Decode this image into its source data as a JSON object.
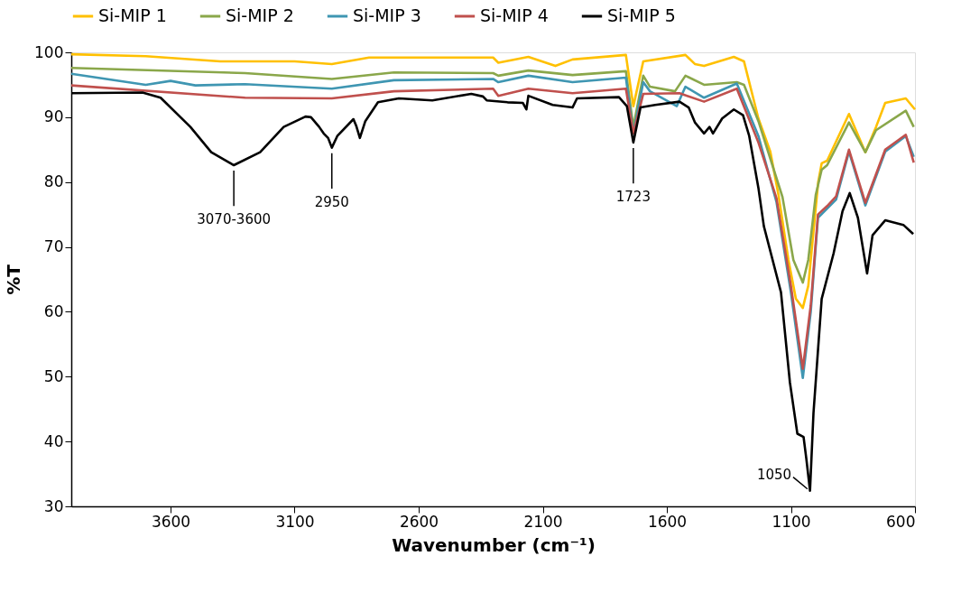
{
  "chart_data": {
    "type": "line",
    "xlabel": "Wavenumber (cm⁻¹)",
    "ylabel": "%T",
    "xlim": [
      4000,
      600
    ],
    "xticks": [
      3600,
      3100,
      2600,
      2100,
      1600,
      1100,
      600
    ],
    "ylim": [
      30,
      100
    ],
    "yticks": [
      30,
      40,
      50,
      60,
      70,
      80,
      90,
      100
    ],
    "grid": false,
    "legend": "top",
    "marker": "none",
    "line_style": "solid",
    "annotations": [
      {
        "text": "3070-3600",
        "x": 3345,
        "y": 82.6
      },
      {
        "text": "2950",
        "x": 2950,
        "y": 85.3
      },
      {
        "text": "1723",
        "x": 1735,
        "y": 86.1
      },
      {
        "text": "1050",
        "x": 1023,
        "y": 32.4
      }
    ],
    "series": [
      {
        "name": "Si-MIP 1",
        "color": "#ffc000",
        "x": [
          4000,
          3700,
          3400,
          3100,
          2950,
          2800,
          2300,
          2279,
          2158,
          2049,
          1980,
          1765,
          1735,
          1695,
          1525,
          1487,
          1450,
          1330,
          1289,
          1231,
          1183,
          1150,
          1110,
          1080,
          1052,
          1030,
          1010,
          990,
          976,
          954,
          866,
          800,
          757,
          720,
          637,
          600
        ],
        "values": [
          99.7,
          99.4,
          98.6,
          98.6,
          98.2,
          99.2,
          99.2,
          98.4,
          99.3,
          97.9,
          98.9,
          99.6,
          91.7,
          98.6,
          99.6,
          98.2,
          97.9,
          99.3,
          98.6,
          89.8,
          84.7,
          78,
          68,
          62,
          60.6,
          64,
          72,
          80,
          82.9,
          83.3,
          90.5,
          84.6,
          88.5,
          92.2,
          92.9,
          91.2
        ]
      },
      {
        "name": "Si-MIP 2",
        "color": "#8aa74a",
        "x": [
          4000,
          3300,
          2950,
          2700,
          2300,
          2279,
          2158,
          1980,
          1765,
          1735,
          1695,
          1668,
          1567,
          1525,
          1450,
          1318,
          1289,
          1231,
          1134,
          1090,
          1052,
          1030,
          1000,
          976,
          954,
          866,
          800,
          757,
          637,
          605
        ],
        "values": [
          97.6,
          96.8,
          95.9,
          96.9,
          96.8,
          96.4,
          97.2,
          96.5,
          97.1,
          88.5,
          96.4,
          94.7,
          94.0,
          96.4,
          95.0,
          95.4,
          95.0,
          89.4,
          77.7,
          68,
          64.5,
          68,
          78,
          81.9,
          82.6,
          89.2,
          84.6,
          88.0,
          91.0,
          88.5
        ]
      },
      {
        "name": "Si-MIP 3",
        "color": "#3f96b2",
        "x": [
          4000,
          3700,
          3600,
          3500,
          3300,
          2950,
          2700,
          2300,
          2279,
          2158,
          1980,
          1765,
          1735,
          1695,
          1668,
          1560,
          1525,
          1450,
          1318,
          1231,
          1158,
          1100,
          1052,
          1020,
          991,
          954,
          918,
          866,
          800,
          720,
          637,
          605
        ],
        "values": [
          96.7,
          95.0,
          95.6,
          94.9,
          95.1,
          94.4,
          95.7,
          95.9,
          95.4,
          96.4,
          95.4,
          96.1,
          87.5,
          95.4,
          94.0,
          91.7,
          94.7,
          93.0,
          95.2,
          87.1,
          76.9,
          63.0,
          49.8,
          60,
          74.5,
          75.9,
          77.3,
          84.7,
          76.4,
          84.7,
          87.1,
          83.9
        ]
      },
      {
        "name": "Si-MIP 4",
        "color": "#c0504d",
        "x": [
          4000,
          3300,
          2950,
          2700,
          2300,
          2279,
          2158,
          1980,
          1765,
          1735,
          1695,
          1549,
          1450,
          1318,
          1231,
          1158,
          1100,
          1052,
          1020,
          991,
          954,
          918,
          866,
          800,
          720,
          637,
          605
        ],
        "values": [
          94.9,
          93.0,
          92.9,
          94.0,
          94.4,
          93.3,
          94.4,
          93.7,
          94.4,
          87.5,
          93.6,
          93.7,
          92.4,
          94.4,
          86.1,
          77.5,
          64,
          51.2,
          61,
          75.0,
          76.3,
          77.8,
          85.0,
          76.8,
          85.0,
          87.3,
          83.0
        ]
      },
      {
        "name": "Si-MIP 5",
        "color": "#000000",
        "x": [
          4000,
          3713,
          3640,
          3520,
          3436,
          3345,
          3239,
          3144,
          3056,
          3034,
          3001,
          2983,
          2965,
          2950,
          2928,
          2863,
          2852,
          2837,
          2815,
          2764,
          2680,
          2545,
          2388,
          2341,
          2326,
          2242,
          2180,
          2166,
          2158,
          2060,
          1980,
          1962,
          1793,
          1761,
          1735,
          1706,
          1647,
          1549,
          1512,
          1487,
          1450,
          1428,
          1414,
          1377,
          1330,
          1293,
          1268,
          1231,
          1209,
          1140,
          1104,
          1074,
          1049,
          1038,
          1023,
          1009,
          976,
          928,
          892,
          863,
          830,
          793,
          771,
          720,
          647,
          607
        ],
        "values": [
          93.7,
          93.8,
          93.0,
          88.5,
          84.6,
          82.6,
          84.6,
          88.5,
          90.1,
          90.0,
          88.5,
          87.5,
          86.8,
          85.3,
          87.1,
          89.7,
          88.7,
          86.8,
          89.4,
          92.3,
          92.9,
          92.6,
          93.6,
          93.2,
          92.6,
          92.3,
          92.2,
          91.2,
          93.3,
          91.9,
          91.5,
          92.9,
          93.1,
          91.7,
          86.1,
          91.5,
          91.9,
          92.4,
          91.5,
          89.2,
          87.5,
          88.5,
          87.5,
          89.8,
          91.2,
          90.3,
          87.1,
          79.1,
          73.2,
          63.0,
          49.1,
          41.2,
          40.7,
          37.4,
          32.4,
          44.4,
          62.0,
          69.0,
          75.5,
          78.3,
          74.5,
          65.9,
          71.8,
          74.1,
          73.4,
          72.0
        ]
      }
    ]
  }
}
